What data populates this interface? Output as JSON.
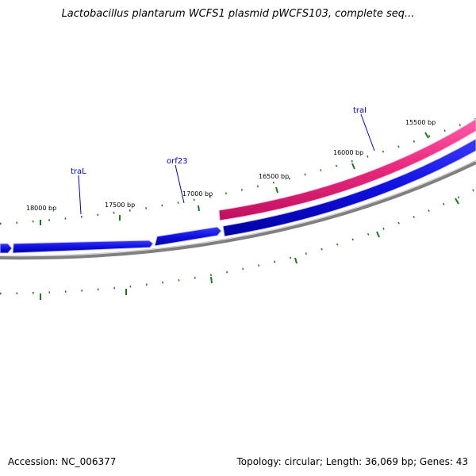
{
  "title": "Lactobacillus plantarum WCFS1 plasmid pWCFS103, complete seq...",
  "footer": {
    "accession_label": "Accession:",
    "accession_value": "NC_006377",
    "topology_label": "Topology:",
    "topology_value": "circular",
    "length_label": "Length:",
    "length_value": "36,069 bp",
    "genes_label": "Genes:",
    "genes_value": "43"
  },
  "ticks": [
    {
      "bp": 18000,
      "label": "18000 bp"
    },
    {
      "bp": 17500,
      "label": "17500 bp"
    },
    {
      "bp": 17000,
      "label": "17000 bp"
    },
    {
      "bp": 16500,
      "label": "16500 bp"
    },
    {
      "bp": 16000,
      "label": "16000 bp"
    },
    {
      "bp": 15500,
      "label": "15500 bp"
    }
  ],
  "genes": [
    {
      "name": "traL",
      "strand": "minus"
    },
    {
      "name": "orf23",
      "strand": "minus"
    },
    {
      "name": "traI",
      "strand": "plus"
    }
  ],
  "colors": {
    "minus_strand": "#1010e0",
    "plus_strand": "#e8287c",
    "backbone": "#808080",
    "tick": "#1a7a1a",
    "gene_label": "#0000cc"
  }
}
